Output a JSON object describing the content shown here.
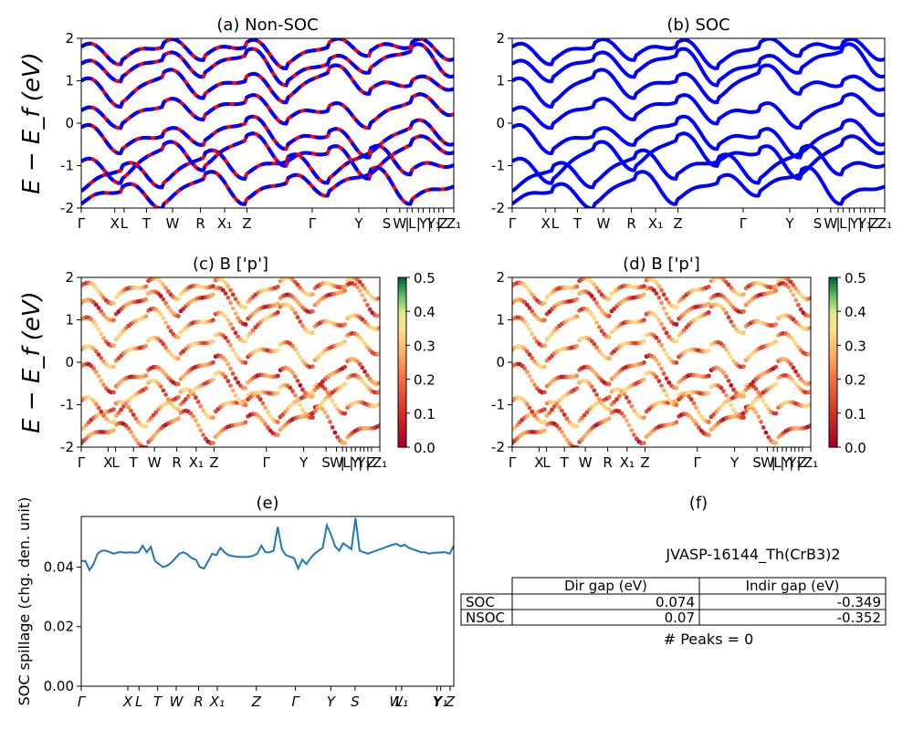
{
  "figure": {
    "hs_labels_bands": [
      "Γ",
      "X",
      "L",
      "T",
      "W",
      "R",
      "X₁",
      "Z",
      "Γ",
      "Y",
      "S",
      "W",
      "|",
      "L",
      "|",
      "Y",
      "|",
      "Y₁",
      "|",
      "Z",
      "Z₁"
    ],
    "hs_labels_spillage": [
      "Γ",
      "X",
      "L",
      "T",
      "W",
      "R",
      "X₁",
      "Z",
      "Γ",
      "Y",
      "S",
      "W",
      "L₁",
      "Y",
      "Y₁",
      "Z"
    ],
    "ylabel_bands": "E − E_f (eV)",
    "ylabel_spillage": "SOC spillage (chg. den. unit)"
  },
  "chart_data": [
    {
      "id": "a",
      "type": "line",
      "title": "(a) Non-SOC",
      "ylabel": "E − E_f (eV)",
      "ylim": [
        -2,
        2
      ],
      "yticks": [
        -2,
        -1,
        0,
        1,
        2
      ],
      "x_tick_labels": [
        "Γ",
        "X",
        "L",
        "T",
        "W",
        "R",
        "X₁",
        "Z",
        "Γ",
        "Y",
        "S",
        "W",
        "|",
        "L",
        "|",
        "Y",
        "|",
        "Y₁",
        "|",
        "Z",
        "Z₁"
      ],
      "series": [
        {
          "values": [
            -1.9,
            -1.5,
            -1.9,
            -1.2,
            -1.8,
            -1.3,
            -1.6,
            -1.1,
            -1.8,
            -1.4
          ]
        },
        {
          "values": [
            -1.6,
            -1.0,
            -1.4,
            -0.7,
            -1.2,
            -0.8,
            -1.3,
            -0.6,
            -1.1,
            -0.9
          ]
        },
        {
          "values": [
            -0.9,
            -1.3,
            -0.5,
            -1.0,
            -0.3,
            -0.9,
            -0.6,
            -1.2,
            -0.4,
            -0.6
          ]
        },
        {
          "values": [
            -0.1,
            -0.6,
            -0.2,
            -0.4,
            0.1,
            -0.5,
            -0.2,
            -0.7,
            0.0,
            -0.4
          ]
        },
        {
          "values": [
            0.3,
            0.0,
            0.5,
            0.2,
            0.6,
            0.1,
            0.4,
            0.0,
            0.6,
            0.3
          ]
        },
        {
          "values": [
            1.0,
            0.5,
            1.2,
            0.7,
            1.1,
            0.6,
            1.3,
            0.8,
            1.0,
            0.9
          ]
        },
        {
          "values": [
            1.4,
            1.1,
            1.6,
            1.2,
            1.7,
            1.0,
            1.5,
            1.3,
            1.8,
            1.2
          ]
        },
        {
          "values": [
            1.8,
            1.5,
            1.9,
            1.6,
            1.9,
            1.4,
            1.9,
            1.7,
            1.9,
            1.6
          ]
        }
      ]
    },
    {
      "id": "b",
      "type": "line",
      "title": "(b) SOC",
      "ylim": [
        -2,
        2
      ],
      "yticks": [
        -2,
        -1,
        0,
        1,
        2
      ],
      "x_tick_labels": [
        "Γ",
        "X",
        "L",
        "T",
        "W",
        "R",
        "X₁",
        "Z",
        "Γ",
        "Y",
        "S",
        "W",
        "|",
        "L",
        "|",
        "Y",
        "|",
        "Y₁",
        "|",
        "Z",
        "Z₁"
      ],
      "series": [
        {
          "values": [
            -1.9,
            -1.5,
            -1.9,
            -1.2,
            -1.8,
            -1.3,
            -1.6,
            -1.1,
            -1.8,
            -1.4
          ]
        },
        {
          "values": [
            -1.6,
            -1.0,
            -1.4,
            -0.7,
            -1.2,
            -0.8,
            -1.3,
            -0.6,
            -1.1,
            -0.9
          ]
        },
        {
          "values": [
            -0.9,
            -1.3,
            -0.5,
            -1.0,
            -0.3,
            -0.9,
            -0.6,
            -1.2,
            -0.4,
            -0.6
          ]
        },
        {
          "values": [
            -0.1,
            -0.6,
            -0.2,
            -0.4,
            0.1,
            -0.5,
            -0.2,
            -0.7,
            0.0,
            -0.4
          ]
        },
        {
          "values": [
            0.3,
            0.0,
            0.5,
            0.2,
            0.6,
            0.1,
            0.4,
            0.0,
            0.6,
            0.3
          ]
        },
        {
          "values": [
            1.0,
            0.5,
            1.2,
            0.7,
            1.1,
            0.6,
            1.3,
            0.8,
            1.0,
            0.9
          ]
        },
        {
          "values": [
            1.4,
            1.1,
            1.6,
            1.2,
            1.7,
            1.0,
            1.5,
            1.3,
            1.8,
            1.2
          ]
        },
        {
          "values": [
            1.8,
            1.5,
            1.9,
            1.6,
            1.9,
            1.4,
            1.9,
            1.7,
            1.9,
            1.6
          ]
        }
      ]
    },
    {
      "id": "c",
      "type": "scatter",
      "title": "(c)  B ['p']",
      "ylim": [
        -2,
        2
      ],
      "yticks": [
        -2,
        -1,
        0,
        1,
        2
      ],
      "colorbar": {
        "range": [
          0.0,
          0.5
        ],
        "ticks": [
          0.0,
          0.1,
          0.2,
          0.3,
          0.4,
          0.5
        ],
        "colormap": "RdYlGn"
      },
      "x_tick_labels": [
        "Γ",
        "X",
        "L",
        "T",
        "W",
        "R",
        "X₁",
        "Z",
        "Γ",
        "Y",
        "S",
        "W",
        "|",
        "L",
        "|",
        "Y",
        "|",
        "Y₁",
        "|",
        "Z",
        "Z₁"
      ]
    },
    {
      "id": "d",
      "type": "scatter",
      "title": "(d) B ['p']",
      "ylim": [
        -2,
        2
      ],
      "yticks": [
        -2,
        -1,
        0,
        1,
        2
      ],
      "colorbar": {
        "range": [
          0.0,
          0.5
        ],
        "ticks": [
          0.0,
          0.1,
          0.2,
          0.3,
          0.4,
          0.5
        ],
        "colormap": "RdYlGn"
      },
      "x_tick_labels": [
        "Γ",
        "X",
        "L",
        "T",
        "W",
        "R",
        "X₁",
        "Z",
        "Γ",
        "Y",
        "S",
        "W",
        "|",
        "L",
        "|",
        "Y",
        "|",
        "Y₁",
        "|",
        "Z",
        "Z₁"
      ]
    },
    {
      "id": "e",
      "type": "line",
      "title": "(e)",
      "ylabel": "SOC spillage (chg. den. unit)",
      "ylim": [
        0.0,
        0.057
      ],
      "yticks": [
        "0.00",
        "0.02",
        "0.04"
      ],
      "x_tick_labels": [
        "Γ",
        "X",
        "L",
        "T",
        "W",
        "R",
        "X₁",
        "Z",
        "Γ",
        "Y",
        "S",
        "W",
        "L₁",
        "Y",
        "Y₁",
        "Z"
      ],
      "series": [
        {
          "values": [
            0.042,
            0.042,
            0.039,
            0.041,
            0.0445,
            0.0455,
            0.0455,
            0.045,
            0.0445,
            0.045,
            0.045,
            0.0448,
            0.045,
            0.0448,
            0.045,
            0.0472,
            0.045,
            0.0468,
            0.042,
            0.041,
            0.04,
            0.0405,
            0.0415,
            0.043,
            0.0445,
            0.045,
            0.0442,
            0.043,
            0.0425,
            0.04,
            0.0395,
            0.042,
            0.0445,
            0.044,
            0.0465,
            0.045,
            0.044,
            0.0437,
            0.0435,
            0.0434,
            0.0434,
            0.0435,
            0.0438,
            0.0445,
            0.0472,
            0.045,
            0.045,
            0.0455,
            0.0535,
            0.046,
            0.044,
            0.0435,
            0.043,
            0.0395,
            0.0425,
            0.041,
            0.043,
            0.0445,
            0.0455,
            0.0465,
            0.054,
            0.051,
            0.047,
            0.0455,
            0.048,
            0.047,
            0.046,
            0.0565,
            0.0455,
            0.045,
            0.0445,
            0.045,
            0.0455,
            0.046,
            0.0465,
            0.047,
            0.0475,
            0.0478,
            0.047,
            0.0475,
            0.0465,
            0.046,
            0.0455,
            0.045,
            0.045,
            0.0445,
            0.0448,
            0.0448,
            0.045,
            0.045,
            0.0445,
            0.0472
          ]
        }
      ]
    }
  ],
  "panel_f": {
    "title": "(f)",
    "material": "JVASP-16144_Th(CrB3)2",
    "table": {
      "columns": [
        "Dir gap (eV)",
        "Indir gap (eV)"
      ],
      "rows": [
        {
          "label": "SOC",
          "dir": "0.074",
          "indir": "-0.349"
        },
        {
          "label": "NSOC",
          "dir": "0.07",
          "indir": "-0.352"
        }
      ]
    },
    "peaks": "# Peaks = 0"
  }
}
